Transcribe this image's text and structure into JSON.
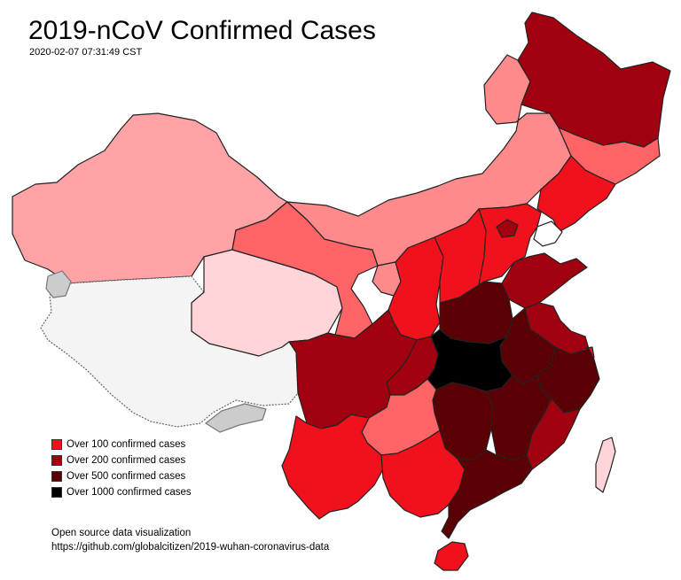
{
  "title": "2019-nCoV Confirmed Cases",
  "timestamp": "2020-02-07 07:31:49 CST",
  "colors": {
    "no_data": "#f4f4f4",
    "level_0": "#ffd5d9",
    "level_1": "#ffa3a7",
    "level_2": "#ff8a8c",
    "level_3": "#ff6466",
    "level_100": "#f0111c",
    "level_200": "#a00010",
    "level_500": "#5a0005",
    "level_1000": "#000000",
    "grey_region": "#cccccc",
    "border": "#222222"
  },
  "legend": [
    {
      "label": "Over 100 confirmed cases",
      "color": "#f0111c"
    },
    {
      "label": "Over 200 confirmed cases",
      "color": "#a00010"
    },
    {
      "label": "Over 500 confirmed cases",
      "color": "#5a0005"
    },
    {
      "label": "Over 1000 confirmed cases",
      "color": "#000000"
    }
  ],
  "credit": {
    "line1": "Open source data visualization",
    "line2": "https://github.com/globalcitizen/2019-wuhan-coronavirus-data"
  }
}
